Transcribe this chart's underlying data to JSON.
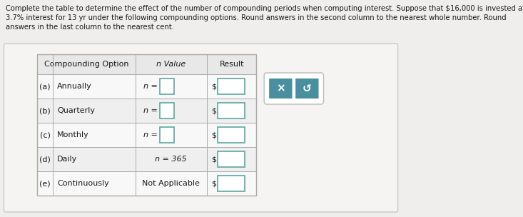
{
  "title_line1": "Complete the table to determine the effect of the number of compounding periods when computing interest. Suppose that $16,000 is invested at",
  "title_line2": "3.7% interest for 13 yr under the following compounding options. Round answers in the second column to the nearest whole number. Round",
  "title_line3": "answers in the last column to the nearest cent.",
  "header": [
    "Compounding Option",
    "n Value",
    "Result"
  ],
  "rows": [
    [
      "(a)",
      "Annually",
      "n =",
      "$"
    ],
    [
      "(b)",
      "Quarterly",
      "n =",
      "$"
    ],
    [
      "(c)",
      "Monthly",
      "n =",
      "$"
    ],
    [
      "(d)",
      "Daily",
      "n = 365",
      "$"
    ],
    [
      "(e)",
      "Continuously",
      "Not Applicable",
      "$"
    ]
  ],
  "bg_color": "#e8e8e8",
  "page_bg": "#f0eeec",
  "table_bg": "#ffffff",
  "header_bg": "#e0e0e0",
  "input_box_color": "#ffffff",
  "input_box_border": "#5ba8a0",
  "button_color": "#4a8fa0",
  "button_border_container": "#cccccc",
  "border_color": "#aaaaaa",
  "text_color": "#1a1a1a",
  "title_fontsize": 7.2,
  "table_fontsize": 8.0,
  "header_fontsize": 8.0
}
